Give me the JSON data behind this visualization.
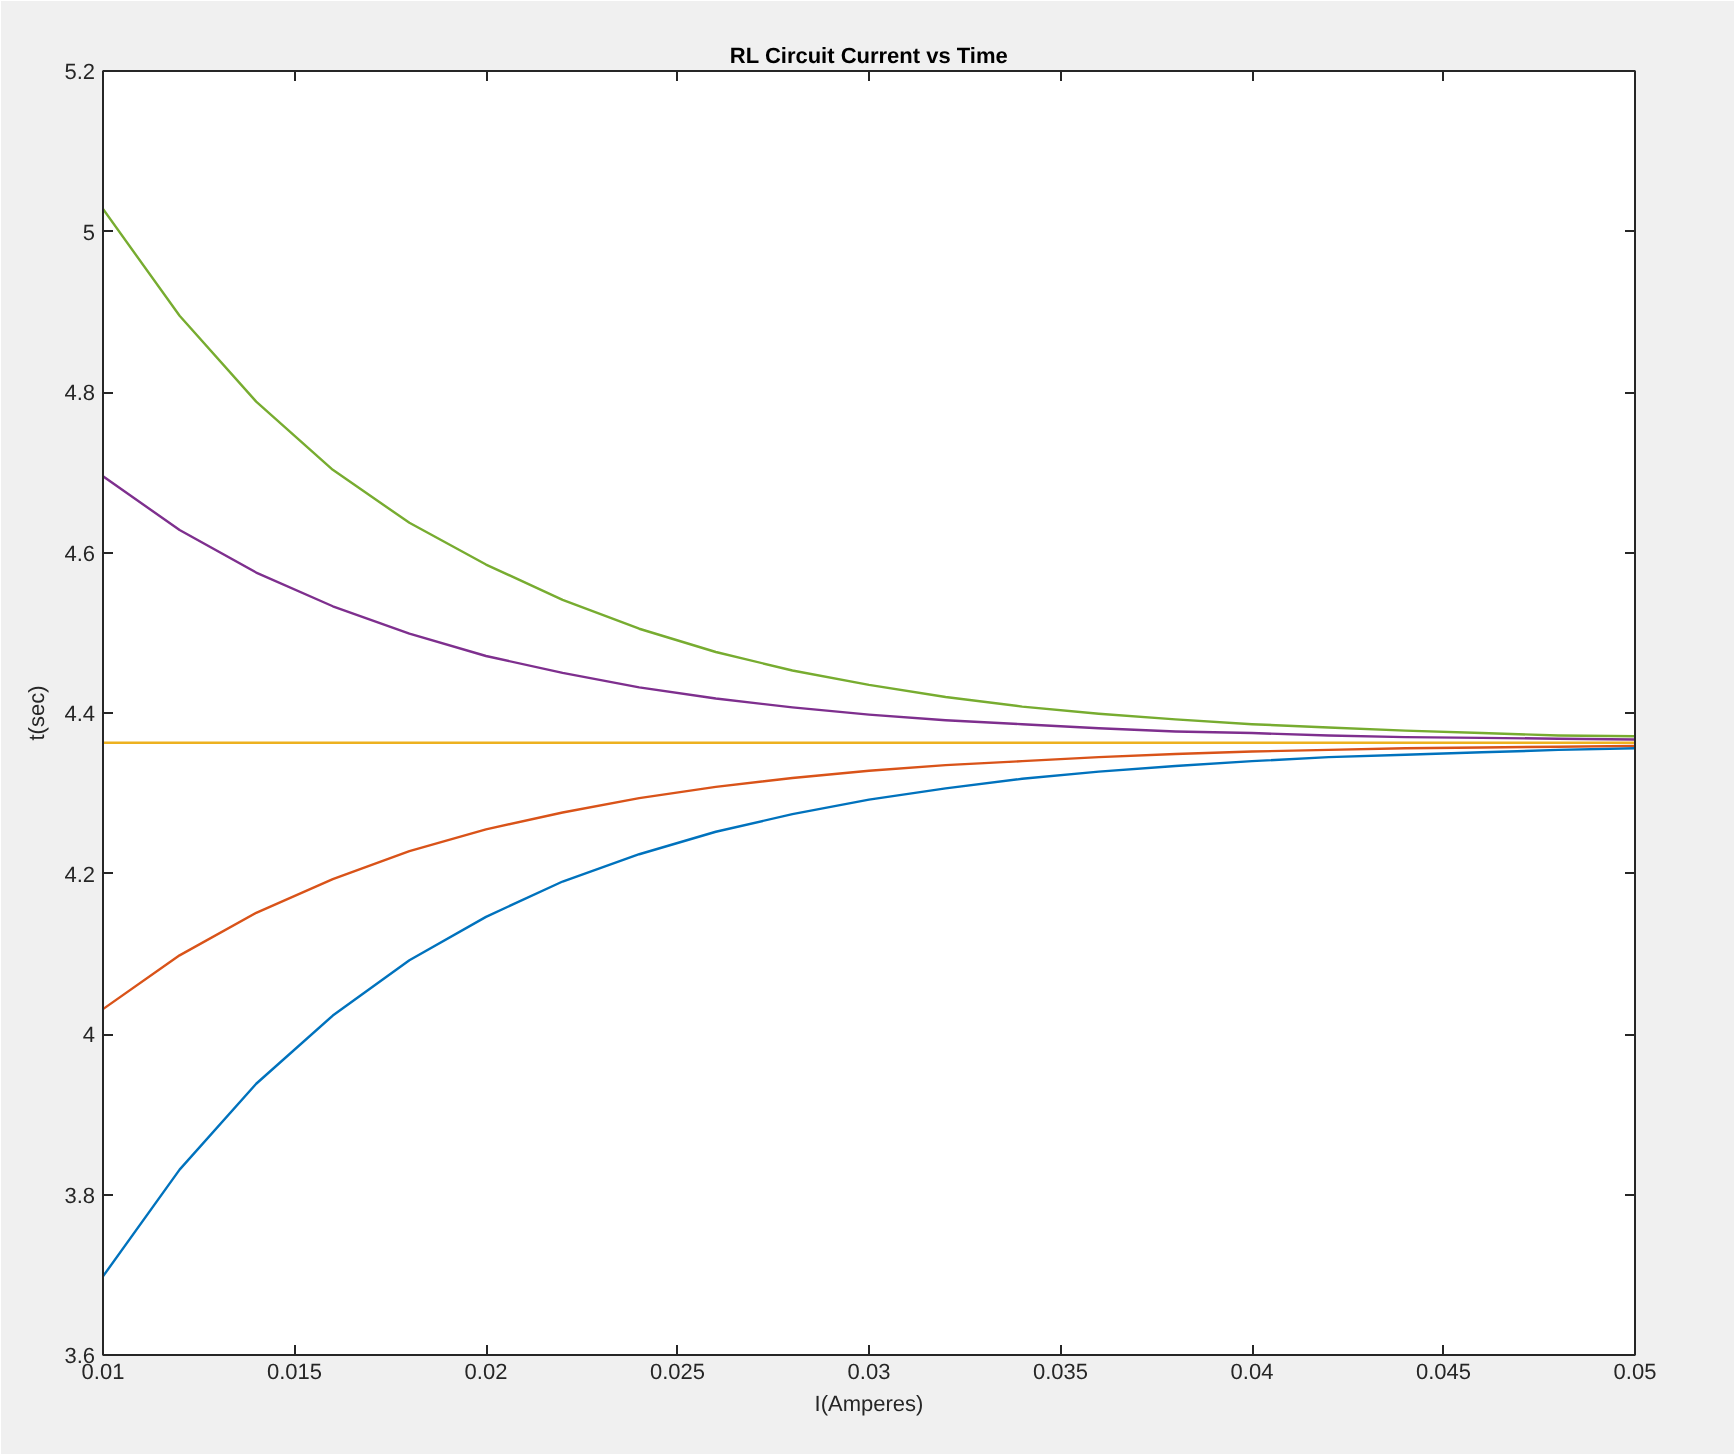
{
  "chart_data": {
    "type": "line",
    "title": "RL Circuit Current vs Time",
    "xlabel": "I(Amperes)",
    "ylabel": "t(sec)",
    "x": [
      0.01,
      0.012,
      0.014,
      0.016,
      0.018,
      0.02,
      0.022,
      0.024,
      0.026,
      0.028,
      0.03,
      0.032,
      0.034,
      0.036,
      0.038,
      0.04,
      0.042,
      0.044,
      0.046,
      0.048,
      0.05
    ],
    "series": [
      {
        "color": "#0072bd",
        "values": [
          3.698,
          3.831,
          3.938,
          4.023,
          4.092,
          4.146,
          4.19,
          4.224,
          4.252,
          4.274,
          4.292,
          4.306,
          4.318,
          4.327,
          4.334,
          4.34,
          4.345,
          4.348,
          4.351,
          4.354,
          4.356
        ]
      },
      {
        "color": "#d95319",
        "values": [
          4.031,
          4.098,
          4.151,
          4.193,
          4.228,
          4.255,
          4.276,
          4.294,
          4.308,
          4.319,
          4.328,
          4.335,
          4.34,
          4.345,
          4.349,
          4.352,
          4.354,
          4.356,
          4.357,
          4.358,
          4.359
        ]
      },
      {
        "color": "#edb120",
        "x": [
          0.01,
          0.05
        ],
        "values": [
          4.363,
          4.363
        ]
      },
      {
        "color": "#7e2f8e",
        "values": [
          4.695,
          4.628,
          4.575,
          4.533,
          4.499,
          4.471,
          4.45,
          4.432,
          4.418,
          4.407,
          4.398,
          4.391,
          4.386,
          4.381,
          4.377,
          4.375,
          4.372,
          4.37,
          4.369,
          4.368,
          4.367
        ]
      },
      {
        "color": "#77ac30",
        "values": [
          5.028,
          4.895,
          4.788,
          4.703,
          4.637,
          4.585,
          4.541,
          4.505,
          4.476,
          4.453,
          4.435,
          4.42,
          4.408,
          4.399,
          4.392,
          4.386,
          4.382,
          4.378,
          4.375,
          4.372,
          4.371
        ]
      }
    ],
    "xlim": [
      0.01,
      0.05
    ],
    "xticks": [
      0.01,
      0.015,
      0.02,
      0.025,
      0.03,
      0.035,
      0.04,
      0.045,
      0.05
    ],
    "ylim": [
      3.6,
      5.2
    ],
    "yticks": [
      3.6,
      3.8,
      4,
      4.2,
      4.4,
      4.6,
      4.8,
      5,
      5.2
    ],
    "line_style": "solid",
    "marker": "none"
  }
}
